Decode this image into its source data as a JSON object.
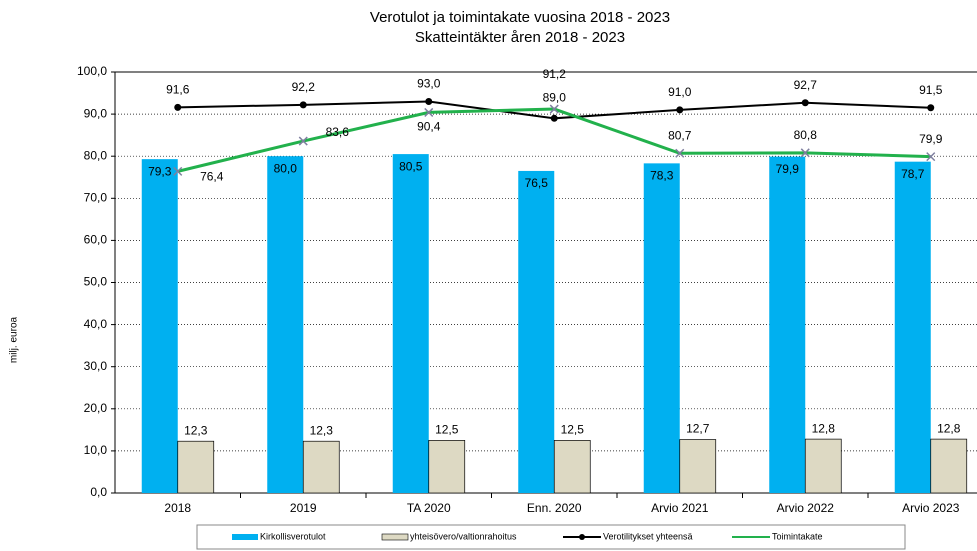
{
  "chart_data": {
    "type": "bar",
    "title": "Verotulot ja toimintakate vuosina 2018 - 2023",
    "subtitle": "Skatteintäkter åren 2018 - 2023",
    "y_label": "milj. euroa",
    "categories": [
      "2018",
      "2019",
      "TA 2020",
      "Enn. 2020",
      "Arvio 2021",
      "Arvio 2022",
      "Arvio 2023"
    ],
    "ylim": [
      0,
      100
    ],
    "yticks": [
      {
        "value": 0,
        "label": "0,0"
      },
      {
        "value": 10,
        "label": "10,0"
      },
      {
        "value": 20,
        "label": "20,0"
      },
      {
        "value": 30,
        "label": "30,0"
      },
      {
        "value": 40,
        "label": "40,0"
      },
      {
        "value": 50,
        "label": "50,0"
      },
      {
        "value": 60,
        "label": "60,0"
      },
      {
        "value": 70,
        "label": "70,0"
      },
      {
        "value": 80,
        "label": "80,0"
      },
      {
        "value": 90,
        "label": "90,0"
      },
      {
        "value": 100,
        "label": "100,0"
      }
    ],
    "grid": true,
    "series": [
      {
        "name": "Kirkollisverotulot",
        "type": "bar",
        "color": "#00b0f0",
        "values": [
          79.3,
          80.0,
          80.5,
          76.5,
          78.3,
          79.9,
          78.7
        ],
        "value_labels": [
          "79,3",
          "80,0",
          "80,5",
          "76,5",
          "78,3",
          "79,9",
          "78,7"
        ]
      },
      {
        "name": "yhteisövero/valtionrahoitus",
        "type": "bar",
        "color": "#ddd9c3",
        "values": [
          12.3,
          12.3,
          12.5,
          12.5,
          12.7,
          12.8,
          12.8
        ],
        "value_labels": [
          "12,3",
          "12,3",
          "12,5",
          "12,5",
          "12,7",
          "12,8",
          "12,8"
        ]
      },
      {
        "name": "Verotilitykset yhteensä",
        "type": "line",
        "color": "#000000",
        "values": [
          91.6,
          92.2,
          93.0,
          89.0,
          91.0,
          92.7,
          91.5
        ],
        "value_labels": [
          "91,6",
          "92,2",
          "93,0",
          "89,0",
          "91,0",
          "92,7",
          "91,5"
        ]
      },
      {
        "name": "Toimintakate",
        "type": "line",
        "color": "#22b14c",
        "values": [
          76.4,
          83.6,
          90.4,
          91.2,
          80.7,
          80.8,
          79.9
        ],
        "value_labels": [
          "76,4",
          "83,6",
          "90,4",
          "91,2",
          "80,7",
          "80,8",
          "79,9"
        ]
      }
    ]
  }
}
